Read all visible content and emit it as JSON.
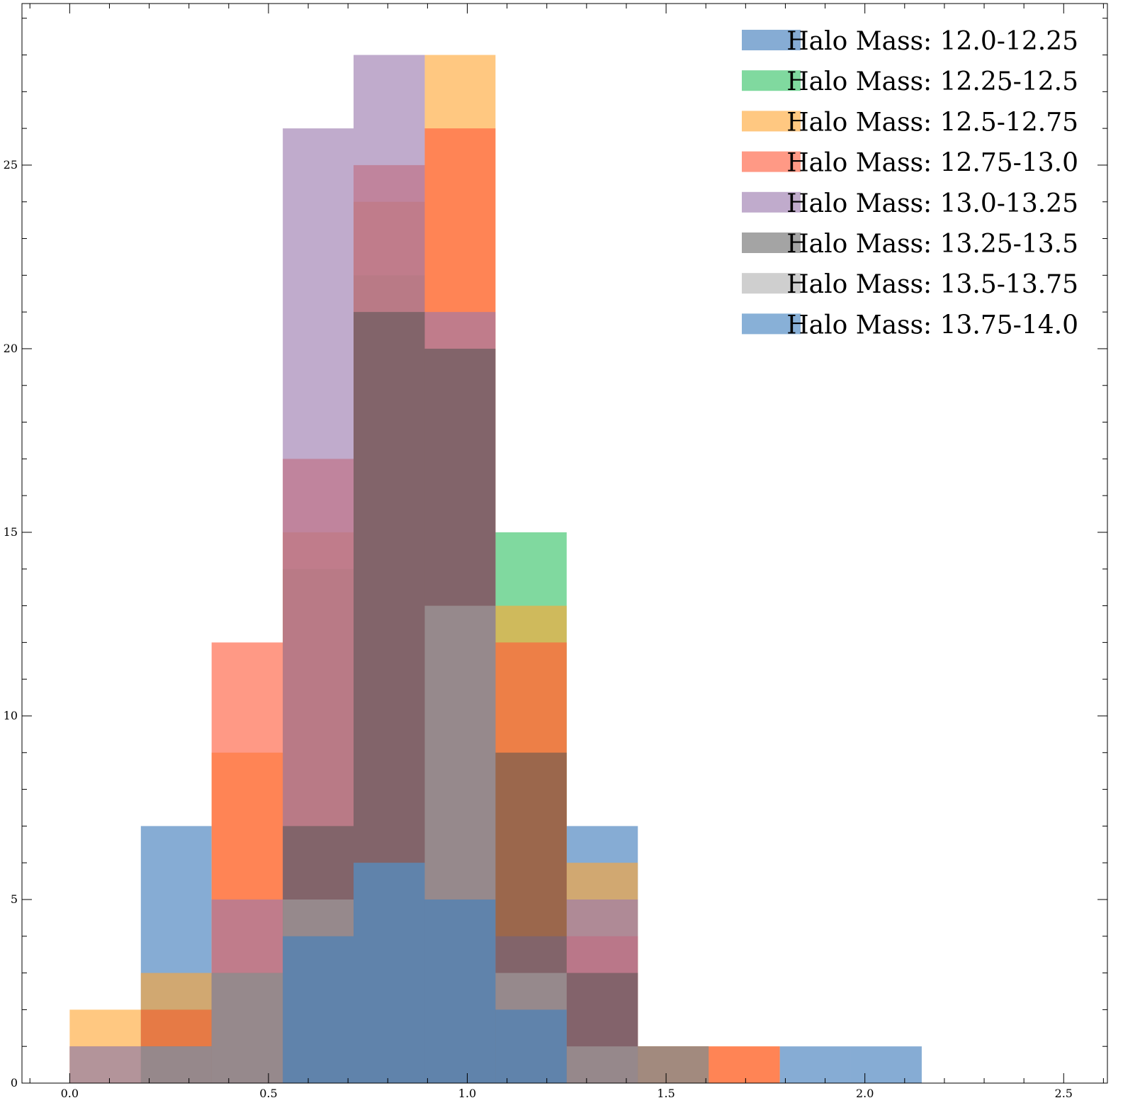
{
  "chart_data": {
    "type": "bar",
    "title": "",
    "xlabel": "",
    "ylabel": "",
    "xlim": [
      -0.12,
      2.61
    ],
    "ylim": [
      0,
      29.4
    ],
    "bin_edges": [
      0.0,
      0.179,
      0.357,
      0.536,
      0.714,
      0.893,
      1.071,
      1.25,
      1.429,
      1.607,
      1.786,
      1.964,
      2.143
    ],
    "x_ticks": [
      "0.0",
      "0.5",
      "1.0",
      "1.5",
      "2.0",
      "2.5"
    ],
    "x_tick_values": [
      0.0,
      0.5,
      1.0,
      1.5,
      2.0,
      2.5
    ],
    "y_ticks": [
      "0",
      "5",
      "10",
      "15",
      "20",
      "25"
    ],
    "y_tick_values": [
      0,
      5,
      10,
      15,
      20,
      25
    ],
    "grid": false,
    "legend_position": "top-right",
    "series": [
      {
        "name": "Halo Mass: 12.0-12.25",
        "color": "#4c84c0",
        "opacity": 0.68,
        "values": [
          0,
          7,
          0,
          4,
          6,
          5,
          2,
          7,
          0,
          0,
          1,
          1
        ]
      },
      {
        "name": "Halo Mass: 12.25-12.5",
        "color": "#3cc46c",
        "opacity": 0.65,
        "values": [
          0,
          2,
          3,
          14,
          22,
          20,
          15,
          1,
          1,
          0,
          0,
          0
        ]
      },
      {
        "name": "Halo Mass: 12.5-12.75",
        "color": "#ffa733",
        "opacity": 0.62,
        "values": [
          2,
          3,
          9,
          15,
          24,
          28,
          13,
          6,
          1,
          1,
          0,
          0
        ]
      },
      {
        "name": "Halo Mass: 12.75-13.0",
        "color": "#ff5a3a",
        "opacity": 0.62,
        "values": [
          1,
          2,
          12,
          17,
          25,
          26,
          12,
          4,
          1,
          1,
          0,
          0
        ]
      },
      {
        "name": "Halo Mass: 13.0-13.25",
        "color": "#9a77ac",
        "opacity": 0.62,
        "values": [
          1,
          1,
          5,
          26,
          28,
          21,
          4,
          5,
          0,
          0,
          0,
          0
        ]
      },
      {
        "name": "Halo Mass: 13.25-13.5",
        "color": "#505050",
        "opacity": 0.52,
        "values": [
          0,
          1,
          3,
          7,
          21,
          20,
          9,
          3,
          1,
          0,
          0,
          0
        ]
      },
      {
        "name": "Halo Mass: 13.5-13.75",
        "color": "#a8a8a8",
        "opacity": 0.55,
        "values": [
          1,
          1,
          3,
          5,
          6,
          13,
          3,
          1,
          1,
          0,
          0,
          0
        ]
      },
      {
        "name": "Halo Mass: 13.75-14.0",
        "color": "#3f7fbf",
        "opacity": 0.62,
        "values": [
          0,
          0,
          0,
          4,
          6,
          5,
          2,
          0,
          0,
          0,
          0,
          0
        ]
      }
    ]
  }
}
